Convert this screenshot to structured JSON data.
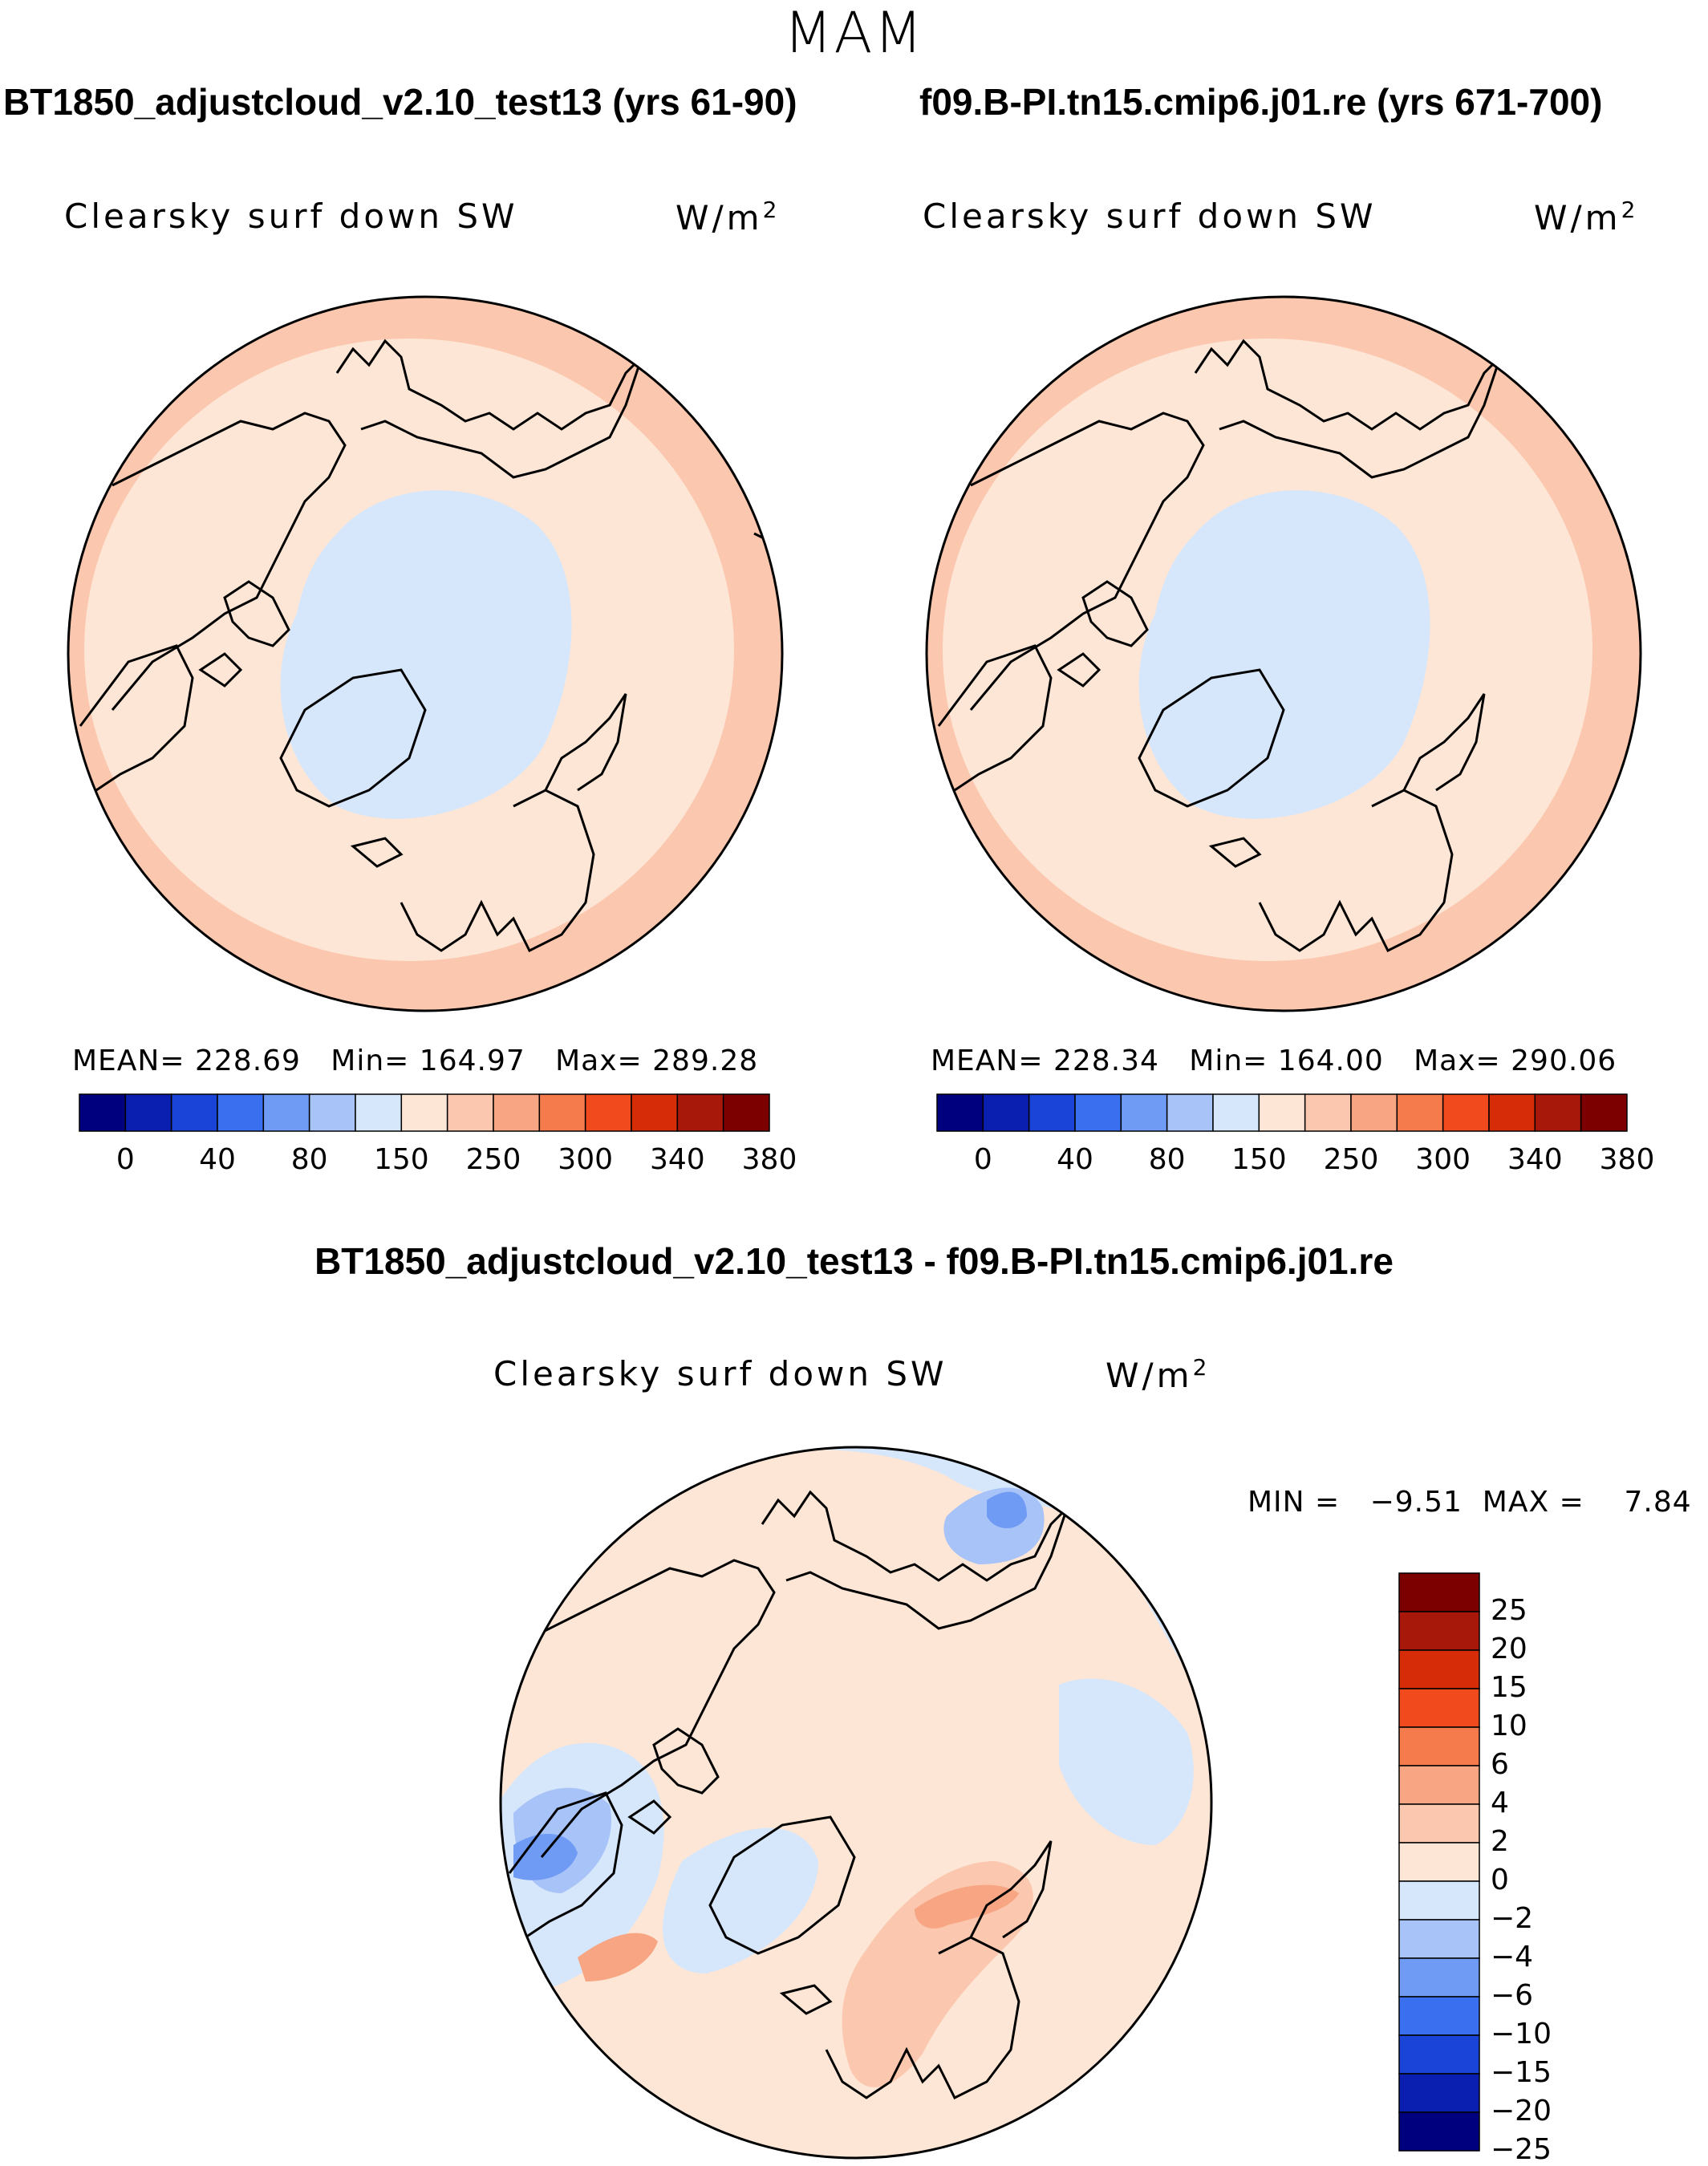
{
  "season": "MAM",
  "panel_left": {
    "run_title": "BT1850_adjustcloud_v2.10_test13 (yrs 61-90)",
    "variable": "Clearsky surf down SW",
    "units": "W/m",
    "units_exp": "2",
    "mean_label": "MEAN=",
    "mean": "228.69",
    "min_label": "Min=",
    "min": "164.97",
    "max_label": "Max=",
    "max": "289.28"
  },
  "panel_right": {
    "run_title": "f09.B-PI.tn15.cmip6.j01.re (yrs 671-700)",
    "variable": "Clearsky surf down SW",
    "units": "W/m",
    "units_exp": "2",
    "mean_label": "MEAN=",
    "mean": "228.34",
    "min_label": "Min=",
    "min": "164.00",
    "max_label": "Max=",
    "max": "290.06"
  },
  "panel_diff": {
    "title": "BT1850_adjustcloud_v2.10_test13 - f09.B-PI.tn15.cmip6.j01.re",
    "variable": "Clearsky surf down SW",
    "units": "W/m",
    "units_exp": "2",
    "min_label": "MIN =",
    "min": "−9.51",
    "max_label": "MAX =",
    "max": "7.84"
  },
  "abs_colorbar": {
    "colors": [
      "#00007f",
      "#0a1fb0",
      "#1a44d8",
      "#3a6ff0",
      "#6f9bf5",
      "#a7c3f7",
      "#d6e7fb",
      "#fde6d6",
      "#fbc7ae",
      "#f7a582",
      "#f57a4c",
      "#f04a1d",
      "#d62c08",
      "#a8180a",
      "#7d0000"
    ],
    "tick_labels": [
      "0",
      "40",
      "80",
      "150",
      "250",
      "300",
      "340",
      "380"
    ]
  },
  "diff_colorbar": {
    "colors_top_to_bottom": [
      "#7d0000",
      "#a8180a",
      "#d62c08",
      "#f04a1d",
      "#f57a4c",
      "#f7a582",
      "#fbc7ae",
      "#fde6d6",
      "#d6e7fb",
      "#a7c3f7",
      "#6f9bf5",
      "#3a6ff0",
      "#1a44d8",
      "#0a1fb0",
      "#00007f"
    ],
    "tick_labels": [
      "25",
      "20",
      "15",
      "10",
      "6",
      "4",
      "2",
      "0",
      "−2",
      "−4",
      "−6",
      "−10",
      "−15",
      "−20",
      "−25"
    ]
  }
}
